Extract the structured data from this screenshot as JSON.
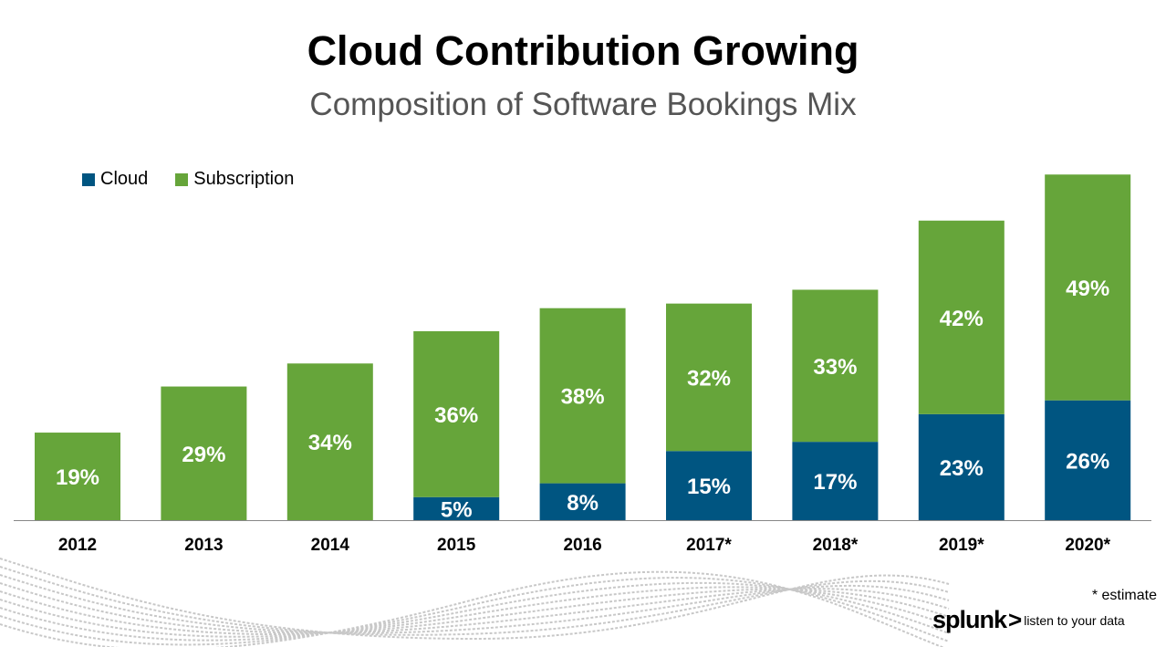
{
  "header": {
    "title": "Cloud Contribution Growing",
    "subtitle": "Composition of Software Bookings Mix"
  },
  "colors": {
    "cloud": "#005581",
    "subscription": "#66a53a"
  },
  "chart_data": {
    "type": "bar",
    "stacked": true,
    "title": "Cloud Contribution Growing",
    "subtitle": "Composition of Software Bookings Mix",
    "categories": [
      "2012",
      "2013",
      "2014",
      "2015",
      "2016",
      "2017*",
      "2018*",
      "2019*",
      "2020*"
    ],
    "series": [
      {
        "name": "Cloud",
        "color": "#005581",
        "values": [
          0,
          0,
          0,
          5,
          8,
          15,
          17,
          23,
          26
        ],
        "labels": [
          "",
          "",
          "",
          "5%",
          "8%",
          "15%",
          "17%",
          "23%",
          "26%"
        ]
      },
      {
        "name": "Subscription",
        "color": "#66a53a",
        "values": [
          19,
          29,
          34,
          36,
          38,
          32,
          33,
          42,
          49
        ],
        "labels": [
          "19%",
          "29%",
          "34%",
          "36%",
          "38%",
          "32%",
          "33%",
          "42%",
          "49%"
        ]
      }
    ],
    "legend": "top-left",
    "grid": false,
    "y_axis_shown": false,
    "unit": "%"
  },
  "footer": {
    "note": "* estimate",
    "logo_word": "splunk",
    "logo_chevron": ">",
    "tagline": "listen to your data"
  }
}
